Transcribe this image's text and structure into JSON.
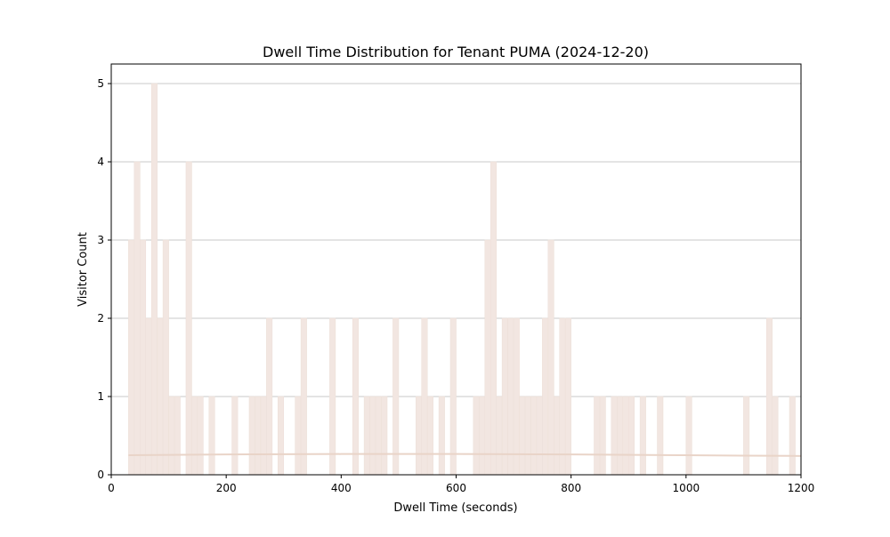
{
  "chart_data": {
    "type": "bar",
    "title": "Dwell Time Distribution for Tenant PUMA (2024-12-20)",
    "xlabel": "Dwell Time (seconds)",
    "ylabel": "Visitor Count",
    "xlim": [
      0,
      1200
    ],
    "ylim": [
      0,
      5.25
    ],
    "xticks": [
      0,
      200,
      400,
      600,
      800,
      1000,
      1200
    ],
    "yticks": [
      0,
      1,
      2,
      3,
      4,
      5
    ],
    "grid": "y",
    "bin_width": 10,
    "bar_color": "#f2e6e1",
    "bar_edge_color": "#ede0d9",
    "trend_color": "#e9d4c8",
    "bins": [
      {
        "x": 30,
        "count": 3
      },
      {
        "x": 40,
        "count": 4
      },
      {
        "x": 50,
        "count": 3
      },
      {
        "x": 60,
        "count": 2
      },
      {
        "x": 70,
        "count": 5
      },
      {
        "x": 80,
        "count": 2
      },
      {
        "x": 90,
        "count": 3
      },
      {
        "x": 100,
        "count": 1
      },
      {
        "x": 110,
        "count": 1
      },
      {
        "x": 130,
        "count": 4
      },
      {
        "x": 140,
        "count": 1
      },
      {
        "x": 150,
        "count": 1
      },
      {
        "x": 170,
        "count": 1
      },
      {
        "x": 210,
        "count": 1
      },
      {
        "x": 240,
        "count": 1
      },
      {
        "x": 250,
        "count": 1
      },
      {
        "x": 260,
        "count": 1
      },
      {
        "x": 270,
        "count": 2
      },
      {
        "x": 290,
        "count": 1
      },
      {
        "x": 320,
        "count": 1
      },
      {
        "x": 330,
        "count": 2
      },
      {
        "x": 380,
        "count": 2
      },
      {
        "x": 420,
        "count": 2
      },
      {
        "x": 440,
        "count": 1
      },
      {
        "x": 450,
        "count": 1
      },
      {
        "x": 460,
        "count": 1
      },
      {
        "x": 470,
        "count": 1
      },
      {
        "x": 490,
        "count": 2
      },
      {
        "x": 530,
        "count": 1
      },
      {
        "x": 540,
        "count": 2
      },
      {
        "x": 550,
        "count": 1
      },
      {
        "x": 570,
        "count": 1
      },
      {
        "x": 590,
        "count": 2
      },
      {
        "x": 630,
        "count": 1
      },
      {
        "x": 640,
        "count": 1
      },
      {
        "x": 650,
        "count": 3
      },
      {
        "x": 660,
        "count": 4
      },
      {
        "x": 670,
        "count": 1
      },
      {
        "x": 680,
        "count": 2
      },
      {
        "x": 690,
        "count": 2
      },
      {
        "x": 700,
        "count": 2
      },
      {
        "x": 710,
        "count": 1
      },
      {
        "x": 720,
        "count": 1
      },
      {
        "x": 730,
        "count": 1
      },
      {
        "x": 740,
        "count": 1
      },
      {
        "x": 750,
        "count": 2
      },
      {
        "x": 760,
        "count": 3
      },
      {
        "x": 770,
        "count": 1
      },
      {
        "x": 780,
        "count": 2
      },
      {
        "x": 790,
        "count": 2
      },
      {
        "x": 840,
        "count": 1
      },
      {
        "x": 850,
        "count": 1
      },
      {
        "x": 870,
        "count": 1
      },
      {
        "x": 880,
        "count": 1
      },
      {
        "x": 890,
        "count": 1
      },
      {
        "x": 900,
        "count": 1
      },
      {
        "x": 920,
        "count": 1
      },
      {
        "x": 950,
        "count": 1
      },
      {
        "x": 1000,
        "count": 1
      },
      {
        "x": 1100,
        "count": 1
      },
      {
        "x": 1140,
        "count": 2
      },
      {
        "x": 1150,
        "count": 1
      },
      {
        "x": 1180,
        "count": 1
      }
    ],
    "trend": {
      "x": [
        30,
        200,
        400,
        600,
        800,
        1000,
        1100,
        1200
      ],
      "y": [
        0.25,
        0.26,
        0.265,
        0.265,
        0.26,
        0.25,
        0.245,
        0.24
      ]
    }
  }
}
